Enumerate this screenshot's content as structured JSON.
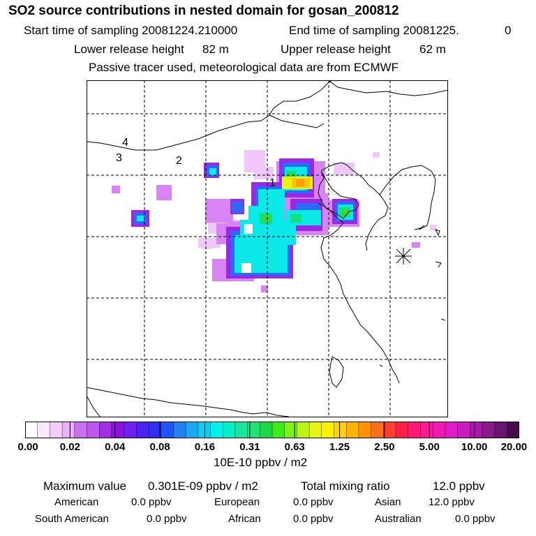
{
  "title": "SO2 source contributions in nested domain for gosan_200812",
  "header": {
    "start_label": "Start time of sampling 20081224.210000",
    "end_label": "End time of sampling 20081225.",
    "end_value": "0",
    "lower_label": "Lower release height",
    "lower_value": "82 m",
    "upper_label": "Upper release height",
    "upper_value": "62 m",
    "note": "Passive tracer used, meteorological data are from ECMWF"
  },
  "map": {
    "source_labels": [
      "1",
      "2",
      "3",
      "4"
    ],
    "receptor_marker": "gosan-asterisk-marker"
  },
  "colorbar": {
    "tick_labels": [
      "0.00",
      "0.02",
      "0.04",
      "0.08",
      "0.16",
      "0.31",
      "0.63",
      "1.25",
      "2.50",
      "5.00",
      "10.00",
      "20.00"
    ],
    "units": "10E-10 ppbv / m2",
    "colors": [
      "#ffffff",
      "#fbe8ff",
      "#f4cdfc",
      "#eab0f8",
      "#c870f0",
      "#bd57f0",
      "#a42ce6",
      "#8c13de",
      "#6e22f0",
      "#4c22f0",
      "#3030f2",
      "#1f55f5",
      "#2280f5",
      "#18a8f2",
      "#10ccf0",
      "#05f0e8",
      "#08eec8",
      "#12e6a0",
      "#1ee276",
      "#1cd848",
      "#40ea18",
      "#80f214",
      "#bcf214",
      "#e6f416",
      "#fff000",
      "#ffd200",
      "#ffb400",
      "#ff9400",
      "#ff6e1e",
      "#ff4030",
      "#ff2048",
      "#ff1a74",
      "#ff1a98",
      "#f21ab4",
      "#e01cc8",
      "#c81cc0",
      "#a818a8",
      "#861a88",
      "#6a1670",
      "#4a0a4e"
    ]
  },
  "stats": {
    "max_label": "Maximum value",
    "max_value": "0.301E-09 ppbv / m2",
    "total_label": "Total mixing ratio",
    "total_value": "12.0 ppbv",
    "regions": [
      {
        "name": "American",
        "value": "0.0 ppbv"
      },
      {
        "name": "European",
        "value": "0.0 ppbv"
      },
      {
        "name": "Asian",
        "value": "12.0 ppbv"
      },
      {
        "name": "South American",
        "value": "0.0 ppbv"
      },
      {
        "name": "African",
        "value": "0.0 ppbv"
      },
      {
        "name": "Australian",
        "value": "0.0 ppbv"
      }
    ]
  }
}
